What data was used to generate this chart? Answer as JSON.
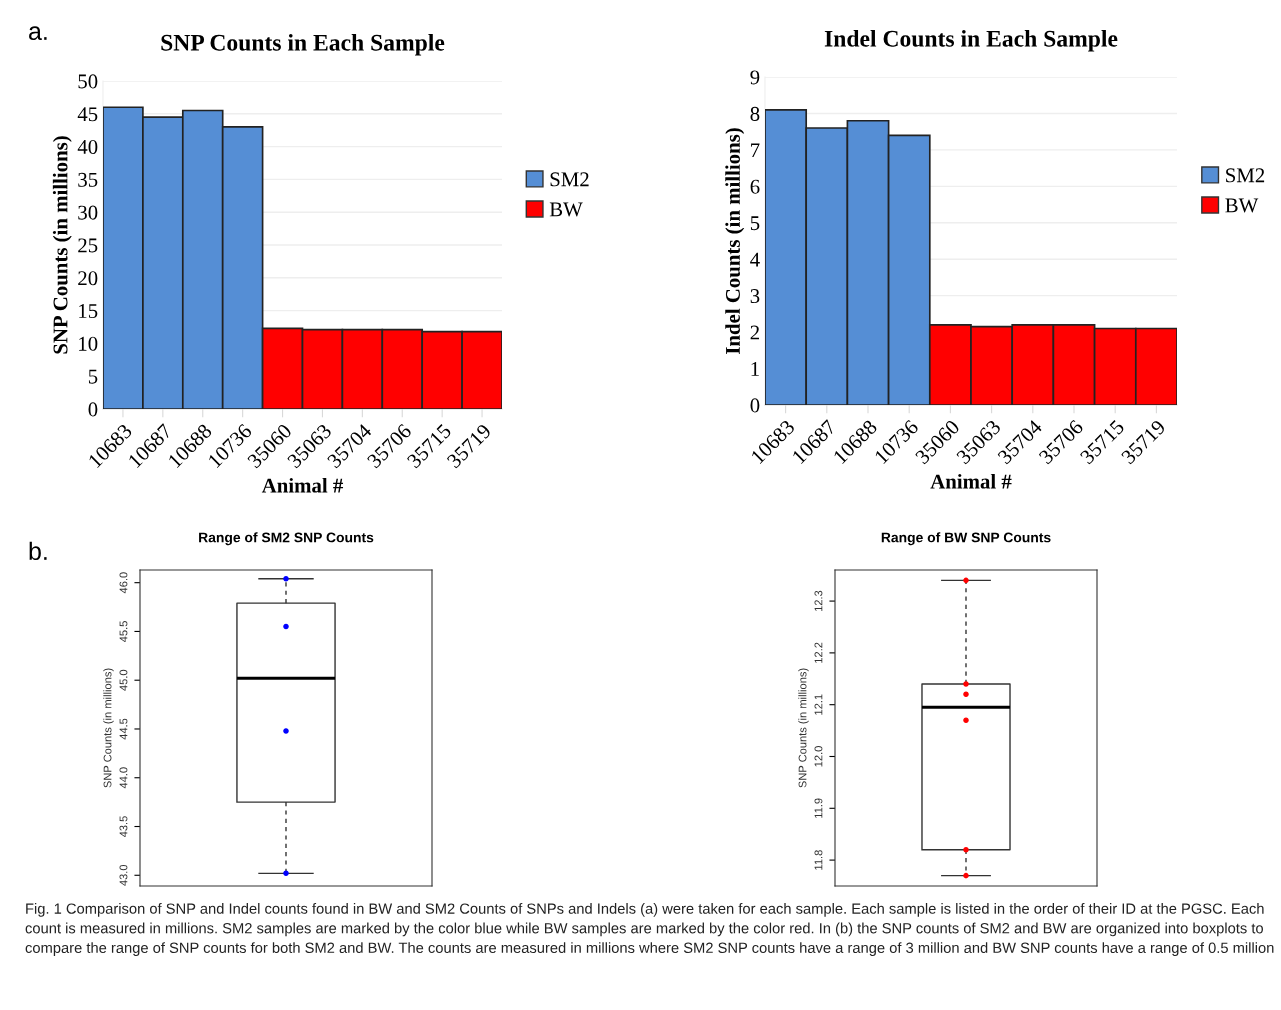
{
  "chart_data": [
    {
      "type": "bar",
      "title": "SNP Counts in Each Sample",
      "xlabel": "Animal #",
      "ylabel": "SNP Counts (in millions)",
      "categories": [
        "10683",
        "10687",
        "10688",
        "10736",
        "35060",
        "35063",
        "35704",
        "35706",
        "35715",
        "35719"
      ],
      "series": [
        {
          "name": "SM2",
          "color": "#558ed5",
          "values": [
            46.0,
            44.5,
            45.5,
            43.0,
            null,
            null,
            null,
            null,
            null,
            null
          ]
        },
        {
          "name": "BW",
          "color": "#ff0000",
          "values": [
            null,
            null,
            null,
            null,
            12.3,
            12.1,
            12.1,
            12.1,
            11.8,
            11.8
          ]
        }
      ],
      "ylim": [
        0,
        50
      ],
      "yticks": [
        0,
        5,
        10,
        15,
        20,
        25,
        30,
        35,
        40,
        45,
        50
      ],
      "grid": "y",
      "legend": "right",
      "annotations": [
        "a."
      ]
    },
    {
      "type": "bar",
      "title": "Indel Counts in Each Sample",
      "xlabel": "Animal #",
      "ylabel": "Indel Counts (in millions)",
      "categories": [
        "10683",
        "10687",
        "10688",
        "10736",
        "35060",
        "35063",
        "35704",
        "35706",
        "35715",
        "35719"
      ],
      "series": [
        {
          "name": "SM2",
          "color": "#558ed5",
          "values": [
            8.1,
            7.6,
            7.8,
            7.4,
            null,
            null,
            null,
            null,
            null,
            null
          ]
        },
        {
          "name": "BW",
          "color": "#ff0000",
          "values": [
            null,
            null,
            null,
            null,
            2.2,
            2.15,
            2.2,
            2.2,
            2.1,
            2.1
          ]
        }
      ],
      "ylim": [
        0,
        9
      ],
      "yticks": [
        0,
        1,
        2,
        3,
        4,
        5,
        6,
        7,
        8,
        9
      ],
      "grid": "y",
      "legend": "right"
    },
    {
      "type": "box",
      "title": "Range of SM2 SNP Counts",
      "ylabel": "SNP Counts (in millions)",
      "categories": [
        null
      ],
      "boxes": [
        {
          "low": 43.02,
          "q1": 43.75,
          "median": 45.02,
          "q3": 45.79,
          "high": 46.04
        }
      ],
      "series": [
        {
          "type": "scatter",
          "color": "#0000ff",
          "marker": "circle",
          "x": [
            null,
            null,
            null,
            null
          ],
          "values": [
            46.04,
            45.55,
            44.48,
            43.02
          ]
        }
      ],
      "ylim": [
        42.89,
        46.13
      ],
      "yticks": [
        {
          "value": 43,
          "label": "43.0"
        },
        43.5,
        {
          "value": 44,
          "label": "44.0"
        },
        44.5,
        {
          "value": 45,
          "label": "45.0"
        },
        45.5,
        {
          "value": 46,
          "label": "46.0"
        }
      ],
      "tick_labels": "y",
      "annotations": [
        "b.",
        "Fig. 1 Comparison of SNP and Indel counts found in BW and SM2 Counts of SNPs and Indels (a) were taken for each sample. Each sample is listed in the order of their ID at the PGSC. Each count is measured in millions. SM2 samples are marked by the color blue while BW samples are marked by the color red. In (b) the SNP counts of SM2 and BW are organized into boxplots to compare the range of SNP counts for both SM2 and BW. The counts are measured in millions where SM2 SNP counts have a range of 3 million and BW SNP counts have a range of 0.5 million"
      ]
    },
    {
      "type": "box",
      "title": "Range of BW SNP Counts",
      "ylabel": "SNP Counts (in millions)",
      "categories": [
        null
      ],
      "boxes": [
        {
          "low": 11.77,
          "q1": 11.82,
          "median": 12.095,
          "q3": 12.14,
          "high": 12.34
        }
      ],
      "series": [
        {
          "type": "scatter",
          "color": "#ff0000",
          "marker": "circle",
          "x": [
            null,
            null,
            null,
            null,
            null,
            null
          ],
          "values": [
            12.34,
            12.14,
            12.12,
            12.07,
            11.82,
            11.77
          ]
        }
      ],
      "ylim": [
        11.75,
        12.36
      ],
      "yticks": [
        11.8,
        11.9,
        {
          "value": 12,
          "label": "12.0"
        },
        12.1,
        12.2,
        12.3
      ],
      "tick_labels": "y"
    }
  ]
}
